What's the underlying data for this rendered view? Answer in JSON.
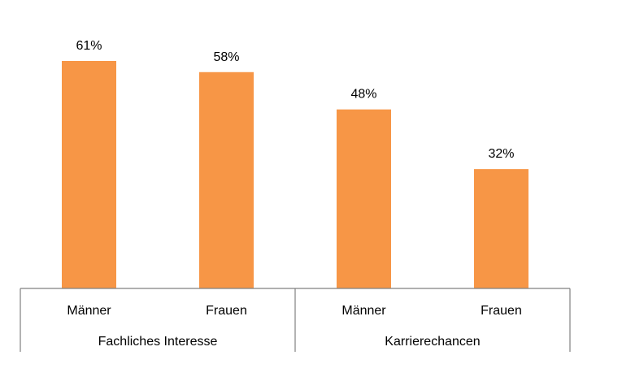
{
  "chart_data": {
    "type": "bar",
    "groups": [
      {
        "label": "Fachliches Interesse",
        "categories": [
          "Männer",
          "Frauen"
        ],
        "values": [
          61,
          58
        ]
      },
      {
        "label": "Karrierechancen",
        "categories": [
          "Männer",
          "Frauen"
        ],
        "values": [
          48,
          32
        ]
      }
    ],
    "value_labels": [
      "61%",
      "58%",
      "48%",
      "32%"
    ],
    "unit": "%",
    "ylim": [
      0,
      70
    ],
    "grid": false,
    "legend": "none",
    "bar_color": "#F79646",
    "axis_color": "#808080"
  }
}
